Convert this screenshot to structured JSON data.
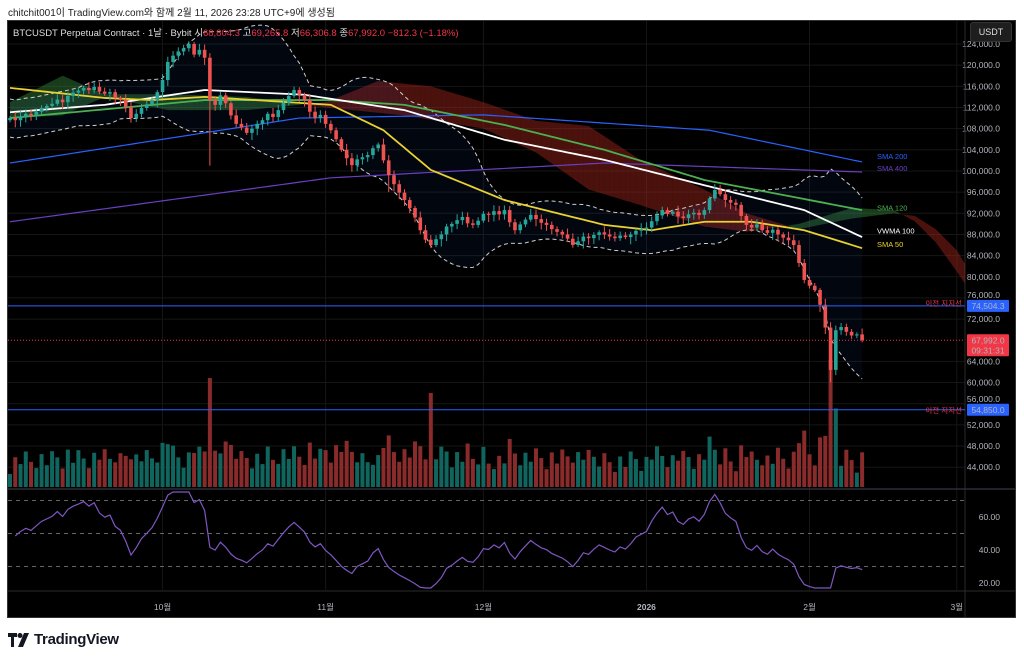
{
  "credit": "chitchit001이 TradingView.com와 함께 2월 11, 2026 23:28 UTC+9에 생성됨",
  "legend": {
    "symbol": "BTCUSDT Perpetual Contract · 1날 · Bybit",
    "open_label": "시",
    "open": "68,804.3",
    "high_label": "고",
    "high": "69,265.8",
    "low_label": "저",
    "low": "66,306.8",
    "close_label": "종",
    "close": "67,992.0",
    "change": "−812.3 (−1.18%)"
  },
  "currency_button": "USDT",
  "logo_text": "TradingView",
  "colors": {
    "up": "#26a69a",
    "down": "#ef5350",
    "vol_up": "#10665e",
    "vol_down": "#892b2b",
    "sma50": "#e8d130",
    "sma120": "#4caf50",
    "sma200": "#2962ff",
    "sma400": "#6a3fc4",
    "vwma100": "#ffffff",
    "rsi": "#7e57c2",
    "hline": "#2962ff",
    "last": "#f23645"
  },
  "chart_data": {
    "type": "candlestick",
    "title": "BTCUSDT Perpetual Contract · 1D · Bybit",
    "price_unit": "USDT (thousands)",
    "first_day_note": "daily candles, approx. 2025-09-02 to 2026-02-11",
    "closes": [
      110.0,
      109.6,
      110.3,
      110.8,
      110.5,
      111.2,
      111.9,
      112.3,
      112.7,
      113.5,
      113.0,
      114.2,
      114.8,
      115.2,
      115.7,
      115.3,
      115.9,
      115.0,
      114.6,
      114.9,
      113.8,
      113.4,
      112.1,
      110.0,
      110.8,
      111.9,
      112.6,
      113.4,
      114.9,
      117.2,
      120.6,
      121.8,
      122.6,
      123.2,
      124.0,
      122.0,
      122.9,
      121.4,
      113.4,
      112.5,
      114.3,
      112.8,
      110.5,
      108.9,
      108.2,
      107.2,
      108.0,
      108.9,
      109.6,
      110.8,
      110.2,
      111.5,
      112.9,
      114.2,
      115.3,
      114.4,
      113.4,
      111.2,
      110.0,
      110.6,
      108.9,
      107.7,
      106.0,
      104.0,
      102.4,
      101.1,
      102.2,
      102.6,
      103.0,
      104.3,
      105.0,
      102.0,
      99.2,
      97.5,
      95.9,
      94.5,
      93.0,
      91.2,
      88.8,
      87.0,
      86.0,
      87.1,
      88.0,
      89.5,
      90.0,
      90.7,
      91.3,
      90.1,
      89.8,
      90.6,
      91.9,
      91.7,
      92.4,
      91.8,
      92.6,
      90.3,
      88.8,
      89.9,
      90.8,
      91.7,
      90.9,
      90.2,
      89.8,
      89.0,
      88.5,
      88.0,
      87.2,
      86.0,
      86.7,
      87.6,
      87.3,
      87.9,
      88.4,
      88.0,
      87.6,
      87.3,
      87.8,
      87.5,
      88.0,
      88.7,
      89.0,
      89.3,
      90.5,
      91.6,
      92.6,
      91.9,
      92.3,
      91.4,
      91.1,
      91.8,
      92.1,
      91.7,
      92.6,
      94.8,
      96.4,
      95.6,
      94.5,
      94.0,
      93.6,
      91.5,
      89.8,
      89.3,
      89.9,
      88.8,
      88.3,
      88.9,
      88.0,
      87.4,
      86.9,
      86.0,
      82.6,
      79.4,
      78.3,
      77.5,
      74.7,
      70.4,
      62.4,
      69.9,
      70.5,
      69.6,
      68.9,
      69.1,
      68.0
    ],
    "special_lows": [
      [
        38,
        101.0
      ],
      [
        156,
        60.0
      ],
      [
        72,
        96.0
      ]
    ],
    "indicators": [
      {
        "name": "SMA 200",
        "color_key": "sma200",
        "points": [
          [
            0,
            101.5
          ],
          [
            55,
            110.0
          ],
          [
            90,
            110.6
          ],
          [
            133,
            107.7
          ],
          [
            162,
            101.7
          ]
        ]
      },
      {
        "name": "SMA 400",
        "color_key": "sma400",
        "points": [
          [
            0,
            90.4
          ],
          [
            61,
            98.7
          ],
          [
            113,
            101.5
          ],
          [
            162,
            99.8
          ]
        ]
      },
      {
        "name": "SMA 120",
        "color_key": "sma120",
        "points": [
          [
            0,
            110.0
          ],
          [
            37,
            113.4
          ],
          [
            61,
            113.4
          ],
          [
            75,
            112.5
          ],
          [
            94,
            108.7
          ],
          [
            113,
            104.0
          ],
          [
            132,
            98.3
          ],
          [
            162,
            92.6
          ]
        ]
      },
      {
        "name": "VWMA 100",
        "color_key": "vwma100",
        "points": [
          [
            0,
            111.1
          ],
          [
            18,
            112.5
          ],
          [
            37,
            115.3
          ],
          [
            56,
            114.4
          ],
          [
            75,
            111.5
          ],
          [
            94,
            105.9
          ],
          [
            113,
            102.1
          ],
          [
            132,
            97.3
          ],
          [
            151,
            92.6
          ],
          [
            162,
            87.5
          ]
        ]
      },
      {
        "name": "SMA 50",
        "color_key": "sma50",
        "points": [
          [
            0,
            115.7
          ],
          [
            18,
            113.8
          ],
          [
            27,
            113.4
          ],
          [
            37,
            114.0
          ],
          [
            61,
            112.5
          ],
          [
            71,
            107.7
          ],
          [
            80,
            100.2
          ],
          [
            94,
            94.5
          ],
          [
            113,
            89.8
          ],
          [
            122,
            88.8
          ],
          [
            132,
            90.4
          ],
          [
            141,
            90.4
          ],
          [
            151,
            88.8
          ],
          [
            162,
            85.4
          ]
        ]
      }
    ],
    "cloud": {
      "span_a": [
        [
          0,
          113.0
        ],
        [
          10,
          118.0
        ],
        [
          18,
          114.5
        ],
        [
          30,
          114.5
        ],
        [
          45,
          114.0
        ],
        [
          60,
          112.0
        ],
        [
          75,
          110.5
        ],
        [
          90,
          108.0
        ],
        [
          100,
          103.5
        ],
        [
          110,
          96.5
        ],
        [
          120,
          93.5
        ],
        [
          132,
          89.5
        ],
        [
          140,
          88.5
        ],
        [
          150,
          90.0
        ],
        [
          160,
          93.0
        ],
        [
          168,
          92.6
        ],
        [
          172,
          90.5
        ],
        [
          176,
          86.5
        ],
        [
          180,
          81.0
        ],
        [
          183,
          76.5
        ]
      ],
      "span_b": [
        [
          0,
          110.0
        ],
        [
          10,
          110.5
        ],
        [
          18,
          114.0
        ],
        [
          30,
          111.5
        ],
        [
          45,
          111.5
        ],
        [
          60,
          113.0
        ],
        [
          70,
          117.0
        ],
        [
          80,
          116.0
        ],
        [
          90,
          113.0
        ],
        [
          100,
          109.5
        ],
        [
          110,
          108.5
        ],
        [
          120,
          102.0
        ],
        [
          132,
          96.5
        ],
        [
          140,
          92.0
        ],
        [
          150,
          89.0
        ],
        [
          160,
          91.0
        ],
        [
          168,
          92.0
        ],
        [
          172,
          91.5
        ],
        [
          176,
          89.0
        ],
        [
          180,
          85.0
        ],
        [
          183,
          80.0
        ]
      ]
    },
    "horizontal_lines": [
      {
        "label": "이전 지지선",
        "value": "74,504.3",
        "price": 74.5043
      },
      {
        "label": "이전 지지선",
        "value": "54,850.0",
        "price": 54.85
      }
    ],
    "last_price": {
      "value": "67,992.0",
      "countdown": "09:31:31",
      "price": 67.992
    },
    "y_ticks": [
      "124,000.0",
      "120,000.0",
      "116,000.0",
      "112,000.0",
      "108,000.0",
      "104,000.0",
      "100,000.0",
      "96,000.0",
      "92,000.0",
      "88,000.0",
      "84,000.0",
      "80,000.0",
      "76,000.0",
      "72,000.0",
      "64,000.0",
      "60,000.0",
      "56,000.0",
      "52,000.0",
      "48,000.0",
      "44,000.0"
    ],
    "y_tick_values": [
      124,
      120,
      116,
      112,
      108,
      104,
      100,
      96,
      92,
      88,
      84,
      80,
      76,
      72,
      64,
      60,
      56,
      52,
      48,
      44
    ],
    "ylim": [
      40,
      128
    ],
    "x_ticks": [
      {
        "label": "10월",
        "day": 29
      },
      {
        "label": "11월",
        "day": 60
      },
      {
        "label": "12월",
        "day": 90
      },
      {
        "label": "2026",
        "day": 121
      },
      {
        "label": "2월",
        "day": 152
      },
      {
        "label": "3월",
        "day": 180
      }
    ],
    "rsi": {
      "ticks": [
        "60.00",
        "40.00",
        "20.00"
      ],
      "tick_values": [
        60,
        40,
        20
      ],
      "bands": [
        70,
        50,
        30
      ],
      "period": 14
    },
    "bollinger": {
      "period": 20,
      "mult": 2
    }
  }
}
